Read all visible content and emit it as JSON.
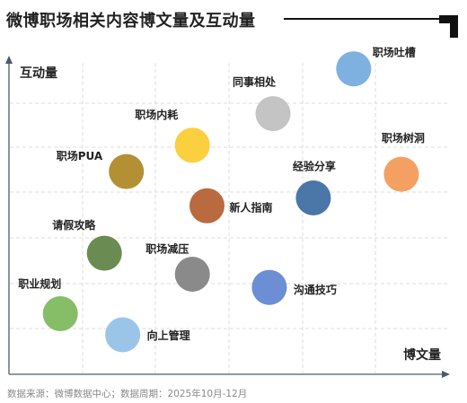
{
  "title": "微博职场相关内容博文量及互动量",
  "source_note": "数据来源：微博数据中心；数据周期：2025年10月-12月",
  "chart_data": {
    "type": "scatter",
    "xlabel": "博文量",
    "ylabel": "互动量",
    "xlim": [
      0,
      6
    ],
    "ylim": [
      0,
      6
    ],
    "grid": true,
    "points": [
      {
        "label": "职场吐槽",
        "x": 4.7,
        "y": 5.8,
        "color": "#7eb0e0"
      },
      {
        "label": "同事相处",
        "x": 3.6,
        "y": 4.95,
        "color": "#c4c4c4"
      },
      {
        "label": "职场内耗",
        "x": 2.5,
        "y": 4.35,
        "color": "#fccf3e"
      },
      {
        "label": "职场树洞",
        "x": 5.35,
        "y": 3.8,
        "color": "#f4a063"
      },
      {
        "label": "职场PUA",
        "x": 1.6,
        "y": 3.85,
        "color": "#b39034"
      },
      {
        "label": "经验分享",
        "x": 4.15,
        "y": 3.35,
        "color": "#4a76a8"
      },
      {
        "label": "新人指南",
        "x": 2.7,
        "y": 3.2,
        "color": "#b96a3e"
      },
      {
        "label": "请假攻略",
        "x": 1.3,
        "y": 2.3,
        "color": "#6a8c52"
      },
      {
        "label": "职场减压",
        "x": 2.5,
        "y": 1.9,
        "color": "#8a8a8a"
      },
      {
        "label": "沟通技巧",
        "x": 3.55,
        "y": 1.65,
        "color": "#6b8ed4"
      },
      {
        "label": "职业规划",
        "x": 0.7,
        "y": 1.15,
        "color": "#86bd67"
      },
      {
        "label": "向上管理",
        "x": 1.55,
        "y": 0.75,
        "color": "#9bc5e8"
      }
    ]
  }
}
